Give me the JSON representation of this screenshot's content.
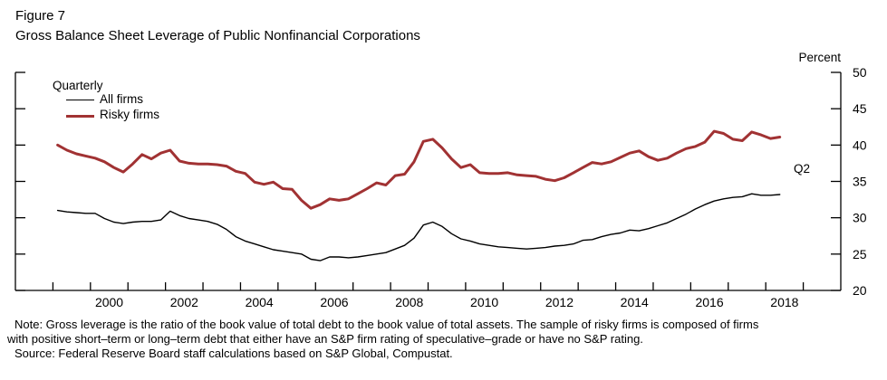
{
  "figure": {
    "label": "Figure 7",
    "title": "Gross Balance Sheet Leverage of Public Nonfinancial Corporations"
  },
  "legend": {
    "frequency": "Quarterly",
    "series": [
      {
        "name": "All firms",
        "color": "#000000",
        "width": 1.4
      },
      {
        "name": "Risky firms",
        "color": "#a13233",
        "width": 3
      }
    ]
  },
  "notes": {
    "note_line1": "Note: Gross leverage is the ratio of the book value of total debt to the book value of total assets. The sample of risky firms is composed of firms",
    "note_line2": "with positive short–term or long–term debt that either have an S&P firm rating of speculative–grade or have no S&P rating.",
    "source": "Source: Federal Reserve Board staff calculations based on S&P Global, Compustat."
  },
  "chart_data": {
    "type": "line",
    "title": "Gross Balance Sheet Leverage of Public Nonfinancial Corporations",
    "unit_label": "Percent",
    "frequency_label": "Quarterly",
    "last_obs_label": "Q2",
    "x_start": 1999.125,
    "x_step": 0.25,
    "xlim": [
      1998,
      2020
    ],
    "ylim": [
      20,
      50
    ],
    "yticks": [
      20,
      25,
      30,
      35,
      40,
      45,
      50
    ],
    "xticks": [
      1999,
      2000,
      2001,
      2002,
      2003,
      2004,
      2005,
      2006,
      2007,
      2008,
      2009,
      2010,
      2011,
      2012,
      2013,
      2014,
      2015,
      2016,
      2017,
      2018,
      2019
    ],
    "xtick_label_years": [
      2000,
      2002,
      2004,
      2006,
      2008,
      2010,
      2012,
      2014,
      2016,
      2018
    ],
    "grid": false,
    "legend_position": "top-left",
    "series": [
      {
        "name": "All firms",
        "color": "#000000",
        "stroke_width": 1.4,
        "values": [
          31.0,
          30.8,
          30.7,
          30.6,
          30.6,
          29.9,
          29.4,
          29.2,
          29.4,
          29.5,
          29.5,
          29.7,
          30.9,
          30.3,
          29.9,
          29.7,
          29.5,
          29.1,
          28.4,
          27.4,
          26.8,
          26.4,
          26.0,
          25.6,
          25.4,
          25.2,
          25.0,
          24.3,
          24.1,
          24.6,
          24.6,
          24.5,
          24.6,
          24.8,
          25.0,
          25.2,
          25.7,
          26.2,
          27.2,
          29.0,
          29.4,
          28.8,
          27.8,
          27.1,
          26.8,
          26.4,
          26.2,
          26.0,
          25.9,
          25.8,
          25.7,
          25.8,
          25.9,
          26.1,
          26.2,
          26.4,
          26.9,
          27.0,
          27.4,
          27.7,
          27.9,
          28.3,
          28.2,
          28.5,
          28.9,
          29.3,
          29.9,
          30.5,
          31.2,
          31.8,
          32.3,
          32.6,
          32.8,
          32.9,
          33.3,
          33.1,
          33.1,
          33.2
        ]
      },
      {
        "name": "Risky firms",
        "color": "#a13233",
        "stroke_width": 3,
        "values": [
          40.0,
          39.3,
          38.8,
          38.5,
          38.2,
          37.7,
          36.9,
          36.3,
          37.4,
          38.7,
          38.1,
          38.9,
          39.3,
          37.8,
          37.5,
          37.4,
          37.4,
          37.3,
          37.1,
          36.4,
          36.1,
          34.9,
          34.6,
          34.9,
          34.0,
          33.9,
          32.4,
          31.3,
          31.8,
          32.6,
          32.4,
          32.6,
          33.3,
          34.0,
          34.8,
          34.5,
          35.8,
          36.0,
          37.7,
          40.5,
          40.8,
          39.6,
          38.1,
          36.9,
          37.3,
          36.2,
          36.1,
          36.1,
          36.2,
          35.9,
          35.8,
          35.7,
          35.3,
          35.1,
          35.5,
          36.2,
          36.9,
          37.6,
          37.4,
          37.7,
          38.3,
          38.9,
          39.2,
          38.4,
          37.9,
          38.2,
          38.9,
          39.5,
          39.8,
          40.4,
          41.9,
          41.6,
          40.8,
          40.6,
          41.8,
          41.4,
          40.9,
          41.1
        ]
      }
    ]
  }
}
